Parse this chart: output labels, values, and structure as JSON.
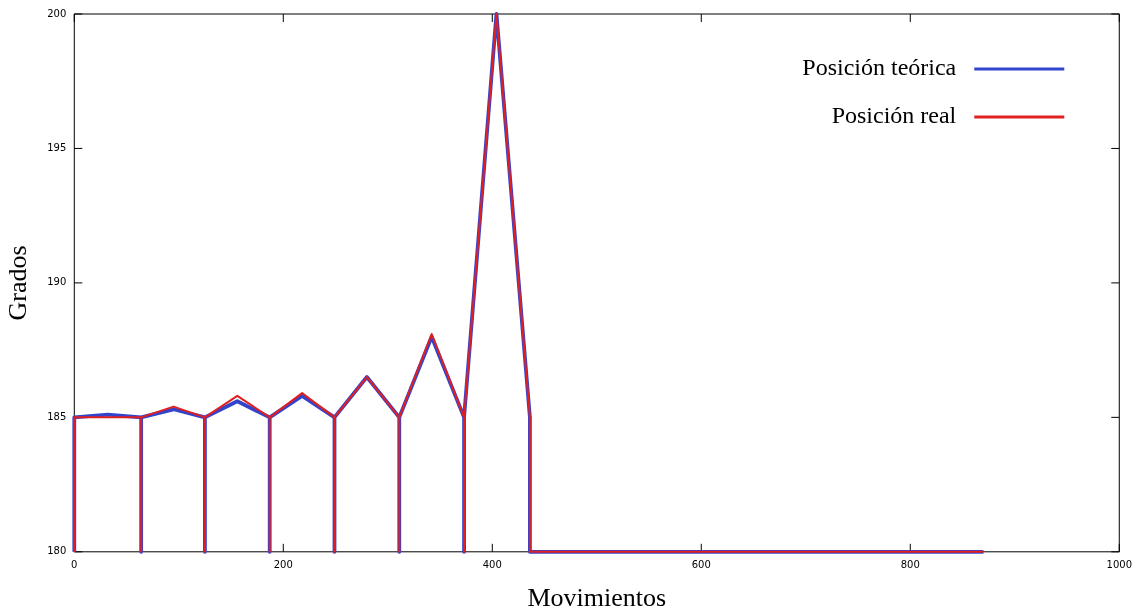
{
  "chart_data": {
    "type": "line",
    "xlabel": "Movimientos",
    "ylabel": "Grados",
    "xlim": [
      0,
      1000
    ],
    "xticks": [
      0,
      200,
      400,
      600,
      800,
      1000
    ],
    "ylim": [
      180,
      200
    ],
    "yticks": [
      180,
      185,
      190,
      195,
      200
    ],
    "grid": false,
    "legend": "top right",
    "marker": "none",
    "line_style": "solid",
    "series": [
      {
        "name": "Posición teórica",
        "color": "#3344cc",
        "x": [
          0,
          0,
          32,
          64,
          64,
          64,
          95,
          125,
          125,
          125,
          156,
          187,
          187,
          187,
          218,
          249,
          249,
          249,
          280,
          311,
          311,
          311,
          342,
          373,
          373,
          373,
          404,
          436,
          436,
          870
        ],
        "values": [
          180,
          185,
          185.1,
          185,
          180,
          185,
          185.3,
          185,
          180,
          185,
          185.6,
          185,
          180,
          185,
          185.8,
          185,
          180,
          185,
          186.5,
          185,
          180,
          185,
          188,
          185,
          180,
          185,
          200,
          185,
          180,
          180
        ]
      },
      {
        "name": "Posición real",
        "color": "#e02020",
        "x": [
          0,
          0,
          32,
          64,
          64,
          64,
          95,
          125,
          125,
          125,
          156,
          187,
          187,
          187,
          218,
          249,
          249,
          249,
          280,
          311,
          311,
          311,
          342,
          373,
          373,
          373,
          404,
          436,
          436,
          870
        ],
        "values": [
          180,
          185,
          185,
          185,
          180,
          185,
          185.4,
          185,
          180,
          185,
          185.8,
          185,
          180,
          185,
          185.9,
          185,
          180,
          185,
          186.5,
          185,
          180,
          185,
          188.1,
          185,
          180,
          185,
          200,
          185,
          180,
          180
        ]
      }
    ]
  }
}
